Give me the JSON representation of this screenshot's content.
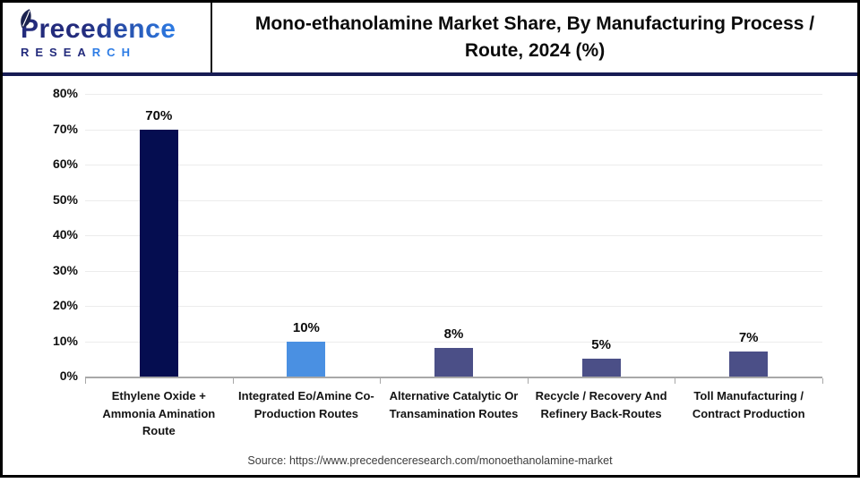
{
  "logo": {
    "brand": "Precedence",
    "research_dark": "RESEA",
    "research_blue": "RCH"
  },
  "header": {
    "title": "Mono-ethanolamine Market Share, By Manufacturing Process / Route, 2024 (%)"
  },
  "footer": {
    "source": "Source: https://www.precedenceresearch.com/monoethanolamine-market"
  },
  "colors": {
    "brand_dark_navy": "#232b7c",
    "brand_blue": "#2d7ce5",
    "header_rule_navy": "#171c54",
    "axis_gray": "#a8a8a8",
    "gridline_gray": "#ececec"
  },
  "chart_data": {
    "type": "bar",
    "title": "Mono-ethanolamine Market Share, By Manufacturing Process / Route, 2024 (%)",
    "categories": [
      "Ethylene Oxide + Ammonia Amination Route",
      "Integrated Eo/Amine Co-Production Routes",
      "Alternative Catalytic Or Transamination Routes",
      "Recycle / Recovery And Refinery Back-Routes",
      "Toll Manufacturing / Contract Production"
    ],
    "values": [
      70,
      10,
      8,
      5,
      7
    ],
    "value_labels": [
      "70%",
      "10%",
      "8%",
      "5%",
      "7%"
    ],
    "bar_colors": [
      "#050d50",
      "#4a90e2",
      "#4b4f87",
      "#4b4f87",
      "#4b4f87"
    ],
    "xlabel": "",
    "ylabel": "",
    "ylim": [
      0,
      80
    ],
    "ytick_step": 10,
    "ytick_labels": [
      "0%",
      "10%",
      "20%",
      "30%",
      "40%",
      "50%",
      "60%",
      "70%",
      "80%"
    ],
    "grid": true,
    "legend": false
  }
}
